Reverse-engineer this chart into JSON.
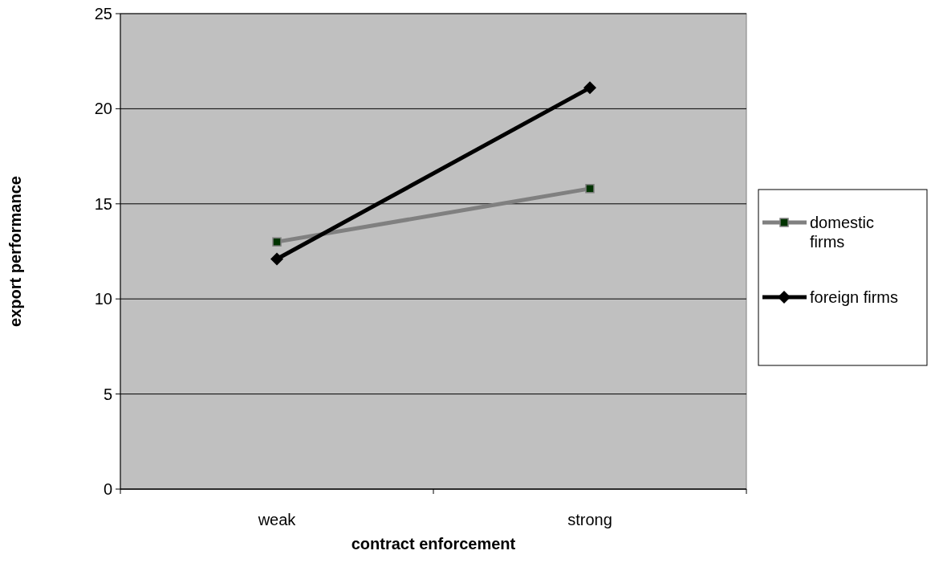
{
  "chart_data": {
    "type": "line",
    "xlabel": "contract enforcement",
    "ylabel": "export performance",
    "categories": [
      "weak",
      "strong"
    ],
    "series": [
      {
        "name": "domestic firms",
        "color": "#808080",
        "values": [
          13.0,
          15.8
        ],
        "marker": "square"
      },
      {
        "name": "foreign firms",
        "color": "#000000",
        "values": [
          12.1,
          21.1
        ],
        "marker": "diamond"
      }
    ],
    "ylim": [
      0,
      25
    ],
    "yticks": [
      0,
      5,
      10,
      15,
      20,
      25
    ],
    "grid": "y",
    "legend": "right"
  }
}
